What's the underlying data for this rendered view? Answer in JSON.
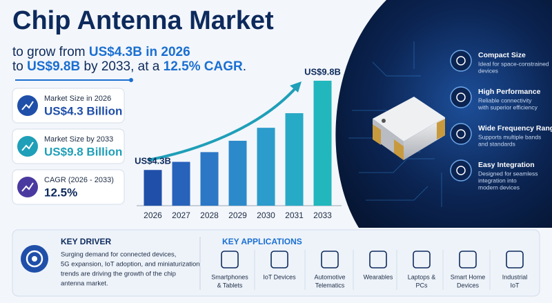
{
  "title": "Chip Antenna Market",
  "subtitle": {
    "line1": [
      "to grow from ",
      "US$4.3B in 2026"
    ],
    "line2": [
      "to ",
      "US$9.8B",
      " by 2033, at a ",
      "12.5% CAGR",
      "."
    ]
  },
  "stats": [
    {
      "label": "Market Size in 2026",
      "value": "US$4.3 Billion"
    },
    {
      "label": "Market Size by 2033",
      "value": "US$9.8 Billion"
    },
    {
      "label": "CAGR (2026 - 2033)",
      "value": "12.5%"
    }
  ],
  "chart_data": {
    "type": "bar",
    "categories": [
      "2026",
      "2027",
      "2028",
      "2029",
      "2030",
      "2031",
      "2033"
    ],
    "values": [
      4.3,
      4.8,
      5.4,
      6.1,
      6.9,
      7.8,
      9.8
    ],
    "value_labels": [
      "US$4.3B",
      null,
      null,
      null,
      null,
      null,
      "US$9.8B"
    ],
    "colors": [
      "#1f4fa8",
      "#2762bb",
      "#2c77c6",
      "#2c8aca",
      "#2b9ccb",
      "#27aac6",
      "#22b6bd"
    ],
    "ylim": [
      2.1,
      10.5
    ]
  },
  "features": [
    {
      "title": "Compact Size",
      "desc": [
        "Ideal for space-constrained",
        "devices"
      ]
    },
    {
      "title": "High Performance",
      "desc": [
        "Reliable connectivity",
        "with superior efficiency"
      ]
    },
    {
      "title": "Wide Frequency Range",
      "desc": [
        "Supports multiple bands",
        "and standards"
      ]
    },
    {
      "title": "Easy Integration",
      "desc": [
        "Designed for seamless",
        "integration into",
        "modern devices"
      ]
    }
  ],
  "key_driver": {
    "title": "KEY DRIVER",
    "text": [
      "Surging demand for connected devices,",
      "5G expansion, IoT adoption, and miniaturization",
      "trends are driving the growth of the chip",
      "antenna market."
    ]
  },
  "key_applications": {
    "title": "KEY APPLICATIONS",
    "items": [
      [
        "Smartphones",
        "& Tablets"
      ],
      [
        "IoT Devices"
      ],
      [
        "Automotive",
        "Telematics"
      ],
      [
        "Wearables"
      ],
      [
        "Laptops &",
        "PCs"
      ],
      [
        "Smart Home",
        "Devices"
      ],
      [
        "Industrial",
        "IoT"
      ]
    ]
  }
}
